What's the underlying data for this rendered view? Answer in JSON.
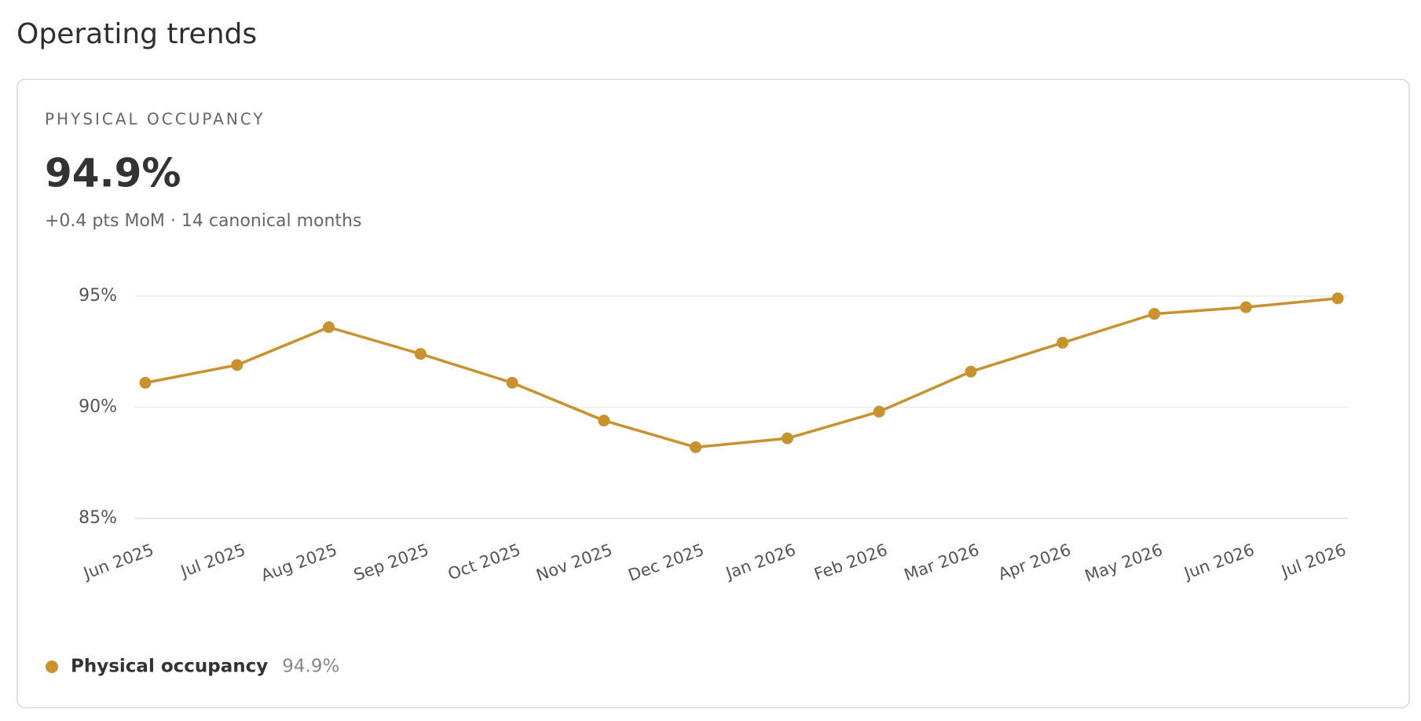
{
  "page_title": "Operating trends",
  "card": {
    "label": "PHYSICAL OCCUPANCY",
    "headline": "94.9%",
    "subtitle": "+0.4 pts MoM · 14 canonical months"
  },
  "chart_data": {
    "type": "line",
    "categories": [
      "Jun 2025",
      "Jul 2025",
      "Aug 2025",
      "Sep 2025",
      "Oct 2025",
      "Nov 2025",
      "Dec 2025",
      "Jan 2026",
      "Feb 2026",
      "Mar 2026",
      "Apr 2026",
      "May 2026",
      "Jun 2026",
      "Jul 2026"
    ],
    "series": [
      {
        "name": "Physical occupancy",
        "color": "#c8922e",
        "values": [
          91.1,
          91.9,
          93.6,
          92.4,
          91.1,
          89.4,
          88.2,
          88.6,
          89.8,
          91.6,
          92.9,
          94.2,
          94.5,
          94.9
        ],
        "legend_value": "94.9%"
      }
    ],
    "ylim": [
      85,
      95
    ],
    "yticks": [
      {
        "value": 85,
        "label": "85%"
      },
      {
        "value": 90,
        "label": "90%"
      },
      {
        "value": 95,
        "label": "95%"
      }
    ],
    "grid": true
  }
}
